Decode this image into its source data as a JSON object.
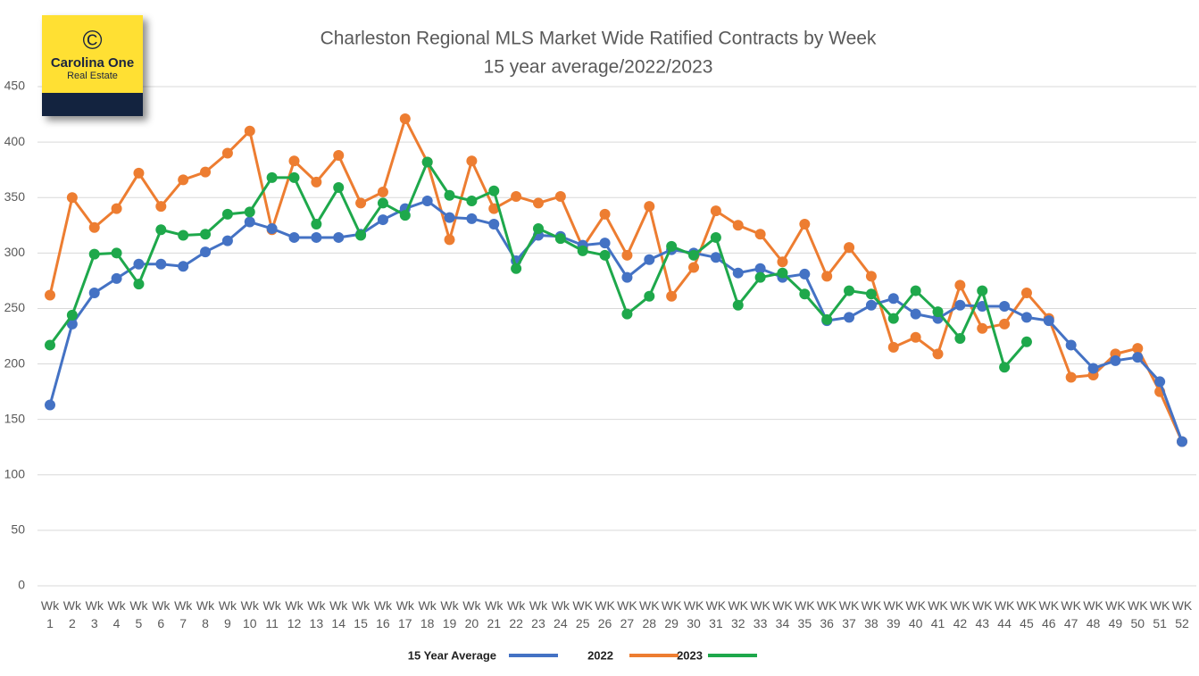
{
  "logo": {
    "symbol": "©",
    "name": "Carolina One",
    "subtitle": "Real Estate"
  },
  "chart_data": {
    "type": "line",
    "title": "Charleston Regional MLS Market Wide Ratified Contracts by Week",
    "subtitle": "15 year average/2022/2023",
    "categories": [
      "Wk 1",
      "Wk 2",
      "Wk 3",
      "Wk 4",
      "Wk 5",
      "Wk 6",
      "Wk 7",
      "Wk 8",
      "Wk 9",
      "Wk 10",
      "Wk 11",
      "Wk 12",
      "Wk 13",
      "Wk 14",
      "Wk 15",
      "Wk 16",
      "Wk 17",
      "Wk 18",
      "Wk 19",
      "Wk 20",
      "Wk 21",
      "Wk 22",
      "Wk 23",
      "Wk 24",
      "WK 25",
      "WK 26",
      "WK 27",
      "WK 28",
      "WK 29",
      "WK 30",
      "WK 31",
      "WK 32",
      "WK 33",
      "WK 34",
      "WK 35",
      "WK 36",
      "WK 37",
      "WK 38",
      "WK 39",
      "WK 40",
      "WK 41",
      "WK 42",
      "WK 43",
      "WK 44",
      "WK 45",
      "WK 46",
      "WK 47",
      "WK 48",
      "WK 49",
      "WK 50",
      "WK 51",
      "WK 52"
    ],
    "series": [
      {
        "name": "15 Year Average",
        "color": "#4472c4",
        "values": [
          163,
          236,
          264,
          277,
          290,
          290,
          288,
          301,
          311,
          328,
          322,
          314,
          314,
          314,
          317,
          330,
          340,
          347,
          332,
          331,
          326,
          293,
          316,
          315,
          307,
          309,
          278,
          294,
          303,
          300,
          296,
          282,
          286,
          278,
          281,
          239,
          242,
          253,
          259,
          245,
          241,
          253,
          252,
          252,
          242,
          239,
          217,
          196,
          203,
          206,
          184,
          130
        ]
      },
      {
        "name": "2022",
        "color": "#ed7d31",
        "values": [
          262,
          350,
          323,
          340,
          372,
          342,
          366,
          373,
          390,
          410,
          321,
          383,
          364,
          388,
          345,
          355,
          421,
          382,
          312,
          383,
          340,
          351,
          345,
          351,
          305,
          335,
          298,
          342,
          261,
          287,
          338,
          325,
          317,
          292,
          326,
          279,
          305,
          279,
          215,
          224,
          209,
          271,
          232,
          236,
          264,
          241,
          188,
          190,
          209,
          214,
          175,
          130
        ]
      },
      {
        "name": "2023",
        "color": "#1ea84b",
        "values": [
          217,
          244,
          299,
          300,
          272,
          321,
          316,
          317,
          335,
          337,
          368,
          368,
          326,
          359,
          316,
          345,
          334,
          382,
          352,
          347,
          356,
          286,
          322,
          313,
          302,
          298,
          245,
          261,
          306,
          298,
          314,
          253,
          278,
          282,
          263,
          240,
          266,
          263,
          241,
          266,
          247,
          223,
          266,
          197,
          220,
          null,
          null,
          null,
          null,
          null,
          null,
          null
        ]
      }
    ],
    "ylim": [
      0,
      450
    ],
    "yticks": [
      0,
      50,
      100,
      150,
      200,
      250,
      300,
      350,
      400,
      450
    ],
    "grid": true,
    "legend": "bottom"
  }
}
